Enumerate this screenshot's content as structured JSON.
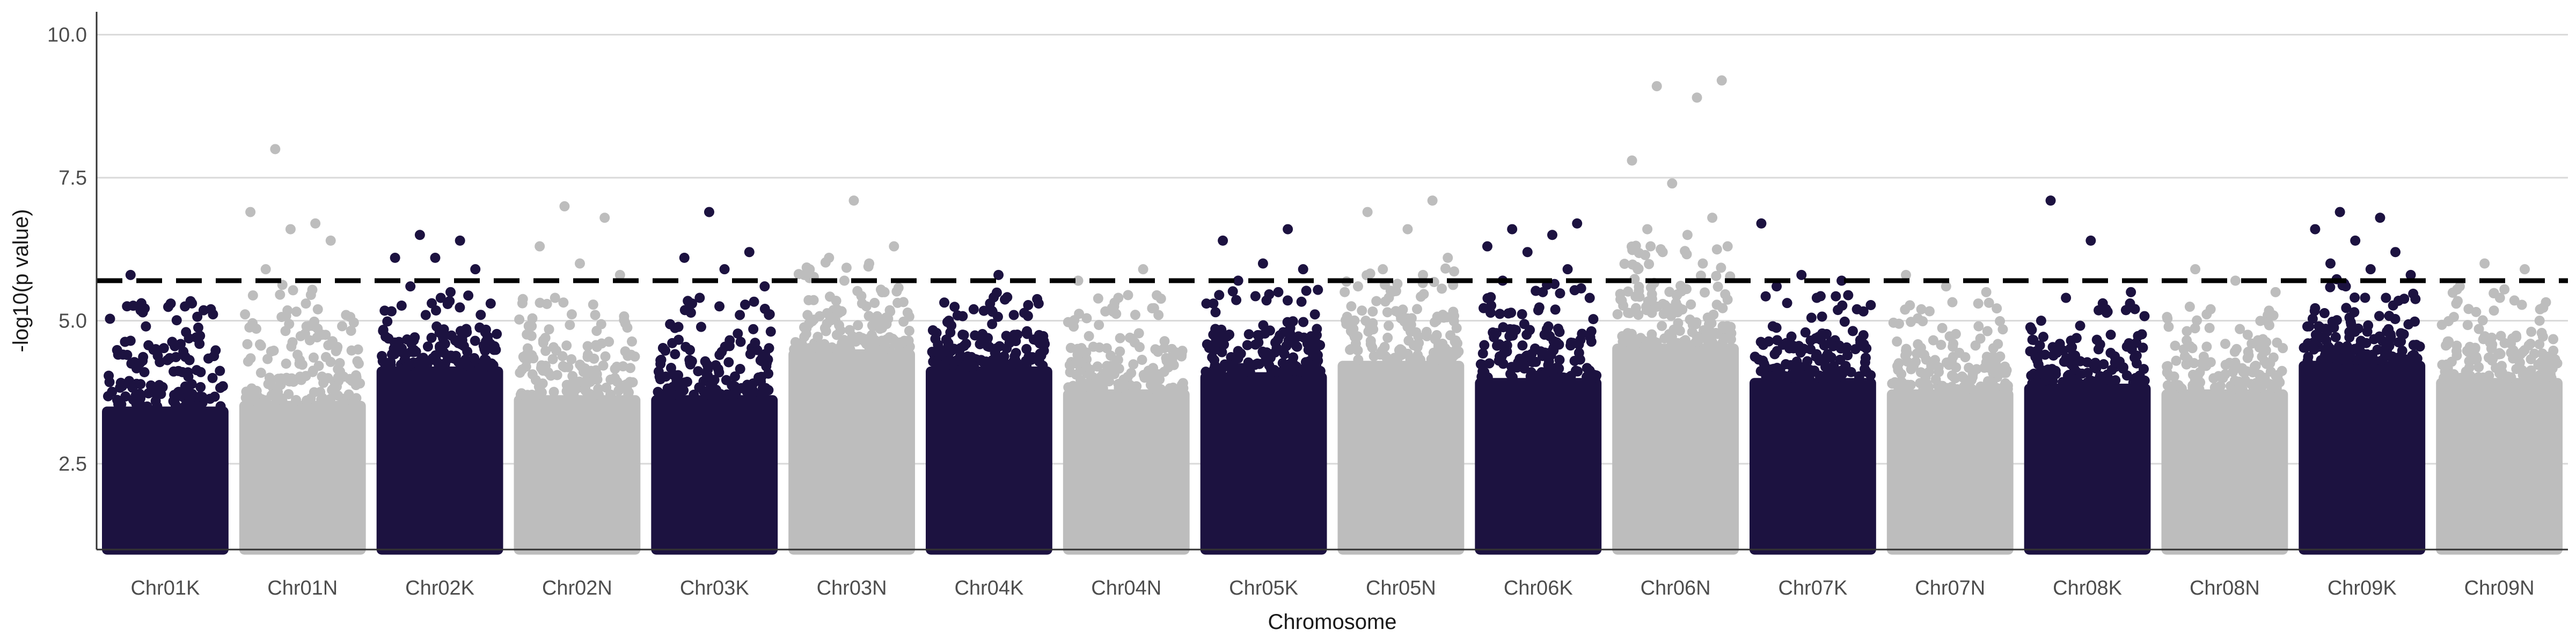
{
  "chart_data": {
    "type": "scatter",
    "subtype": "manhattan",
    "title": "",
    "xlabel": "Chromosome",
    "ylabel": "-log10(p value)",
    "ylim": [
      1.0,
      10.4
    ],
    "yticks": [
      "2.5",
      "5.0",
      "7.5",
      "10.0"
    ],
    "ytick_values": [
      2.5,
      5.0,
      7.5,
      10.0
    ],
    "threshold": 5.7,
    "threshold_style": "dashed",
    "point_floor": 1.0,
    "grid": "horizontal",
    "colors": {
      "dark": "#1c1240",
      "light": "#bdbdbd",
      "threshold": "#000000",
      "grid": "#d9d9d9"
    },
    "chromosomes": [
      {
        "name": "Chr01K",
        "color": "dark",
        "dense_top": 3.5,
        "mid_top": 4.6,
        "peaks": [
          5.8,
          5.3,
          5.2,
          4.9,
          4.8
        ]
      },
      {
        "name": "Chr01N",
        "color": "light",
        "dense_top": 3.6,
        "mid_top": 4.9,
        "peaks": [
          8.0,
          6.7,
          6.9,
          6.6,
          6.4,
          5.9,
          5.3,
          5.1
        ]
      },
      {
        "name": "Chr02K",
        "color": "dark",
        "dense_top": 4.2,
        "mid_top": 4.8,
        "peaks": [
          6.5,
          6.4,
          6.1,
          6.1,
          5.9,
          5.6,
          5.5,
          5.3,
          5.1
        ]
      },
      {
        "name": "Chr02N",
        "color": "light",
        "dense_top": 3.7,
        "mid_top": 4.7,
        "peaks": [
          7.0,
          6.8,
          6.3,
          6.0,
          5.8,
          5.4,
          5.1
        ]
      },
      {
        "name": "Chr03K",
        "color": "dark",
        "dense_top": 3.7,
        "mid_top": 4.6,
        "peaks": [
          6.9,
          6.2,
          6.1,
          5.9,
          5.6,
          5.4,
          5.1
        ]
      },
      {
        "name": "Chr03N",
        "color": "light",
        "dense_top": 4.5,
        "mid_top": 5.3,
        "peaks": [
          7.1,
          6.3,
          6.1,
          6.0,
          5.8,
          5.7,
          5.5
        ]
      },
      {
        "name": "Chr04K",
        "color": "dark",
        "dense_top": 4.2,
        "mid_top": 4.8,
        "peaks": [
          5.8,
          5.3,
          5.2,
          5.1,
          5.0
        ]
      },
      {
        "name": "Chr04N",
        "color": "light",
        "dense_top": 3.8,
        "mid_top": 4.7,
        "peaks": [
          5.9,
          5.7,
          5.4,
          5.1
        ]
      },
      {
        "name": "Chr05K",
        "color": "dark",
        "dense_top": 4.1,
        "mid_top": 4.8,
        "peaks": [
          6.6,
          6.4,
          6.0,
          5.9,
          5.7,
          5.5,
          5.3
        ]
      },
      {
        "name": "Chr05N",
        "color": "light",
        "dense_top": 4.3,
        "mid_top": 5.2,
        "peaks": [
          7.1,
          6.9,
          6.6,
          6.1,
          5.9,
          5.8,
          5.6
        ]
      },
      {
        "name": "Chr06K",
        "color": "dark",
        "dense_top": 4.0,
        "mid_top": 4.9,
        "peaks": [
          6.7,
          6.6,
          6.5,
          6.3,
          6.2,
          5.9,
          5.7,
          5.5
        ]
      },
      {
        "name": "Chr06N",
        "color": "light",
        "dense_top": 4.6,
        "mid_top": 5.6,
        "peaks": [
          9.2,
          9.1,
          8.9,
          7.8,
          7.4,
          6.8,
          6.6,
          6.5,
          6.3,
          6.2,
          6.0,
          5.9
        ]
      },
      {
        "name": "Chr07K",
        "color": "dark",
        "dense_top": 4.0,
        "mid_top": 4.7,
        "peaks": [
          6.7,
          5.8,
          5.7,
          5.6,
          5.4,
          5.2
        ]
      },
      {
        "name": "Chr07N",
        "color": "light",
        "dense_top": 3.8,
        "mid_top": 4.6,
        "peaks": [
          5.8,
          5.6,
          5.5,
          5.2
        ]
      },
      {
        "name": "Chr08K",
        "color": "dark",
        "dense_top": 3.9,
        "mid_top": 4.6,
        "peaks": [
          7.1,
          6.4,
          5.5,
          5.4,
          5.2,
          5.0
        ]
      },
      {
        "name": "Chr08N",
        "color": "light",
        "dense_top": 3.8,
        "mid_top": 4.6,
        "peaks": [
          5.9,
          5.7,
          5.5,
          5.2
        ]
      },
      {
        "name": "Chr09K",
        "color": "dark",
        "dense_top": 4.3,
        "mid_top": 5.0,
        "peaks": [
          6.9,
          6.8,
          6.6,
          6.4,
          6.2,
          6.0,
          5.9,
          5.8,
          5.6,
          5.4
        ]
      },
      {
        "name": "Chr09N",
        "color": "light",
        "dense_top": 4.0,
        "mid_top": 4.8,
        "peaks": [
          6.0,
          5.9,
          5.6,
          5.4,
          5.2
        ]
      }
    ]
  }
}
